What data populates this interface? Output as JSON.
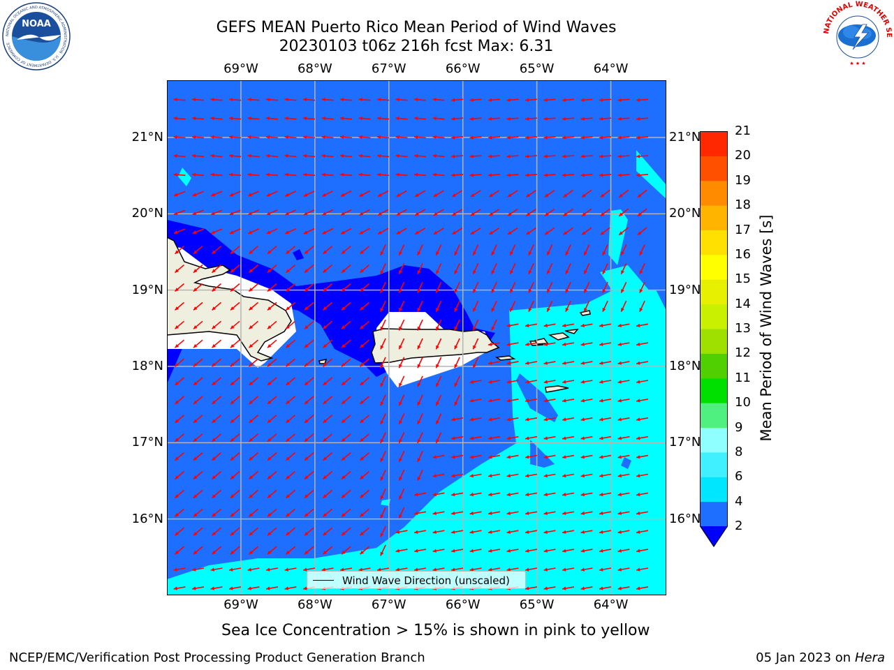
{
  "title": {
    "line1": "GEFS MEAN Puerto Rico Mean Period of Wind Waves",
    "line2": "20230103 t06z 216h fcst   Max: 6.31"
  },
  "map": {
    "lon_labels": [
      "69°W",
      "68°W",
      "67°W",
      "66°W",
      "65°W",
      "64°W"
    ],
    "lat_labels": [
      "21°N",
      "20°N",
      "19°N",
      "18°N",
      "17°N",
      "16°N"
    ],
    "lon_values": [
      -69,
      -68,
      -67,
      -66,
      -65,
      -64
    ],
    "lat_values": [
      21,
      20,
      19,
      18,
      17,
      16
    ],
    "lon_range": [
      -70,
      -63.25
    ],
    "lat_range": [
      15,
      21.75
    ],
    "land_color": "#efefdf",
    "arrow_color": "#ff0000",
    "grid": true
  },
  "legend": {
    "label": "Wind Wave Direction (unscaled)"
  },
  "colorbar": {
    "title": "Mean Period of Wind Waves [s]",
    "ticks": [
      "2",
      "4",
      "6",
      "8",
      "9",
      "10",
      "11",
      "12",
      "13",
      "14",
      "15",
      "16",
      "17",
      "18",
      "19",
      "20",
      "21"
    ],
    "levels": [
      2,
      4,
      6,
      8,
      9,
      10,
      11,
      12,
      13,
      14,
      15,
      16,
      17,
      18,
      19,
      20,
      21
    ],
    "colors": [
      "#1e6eff",
      "#00e6ff",
      "#40f0ff",
      "#90ffff",
      "#50f080",
      "#00e000",
      "#50d000",
      "#a0e000",
      "#c8f000",
      "#e6f000",
      "#ffff00",
      "#ffe000",
      "#ffb400",
      "#ff8c00",
      "#ff5000",
      "#ff2800",
      "#ff0000"
    ],
    "under_color": "#0000ff"
  },
  "notes": {
    "sea_ice": "Sea Ice Concentration > 15% is shown in pink to yellow"
  },
  "footer": {
    "left": "NCEP/EMC/Verification Post Processing Product Generation Branch",
    "right_date": "05 Jan 2023 on ",
    "right_host": "Hera"
  },
  "logos": {
    "left_text": "NOAA",
    "left_ring_text": "NATIONAL OCEANIC AND ATMOSPHERIC ADMINISTRATION · U.S. DEPARTMENT OF COMMERCE",
    "right_ring_text": "NATIONAL WEATHER SERVICE"
  }
}
